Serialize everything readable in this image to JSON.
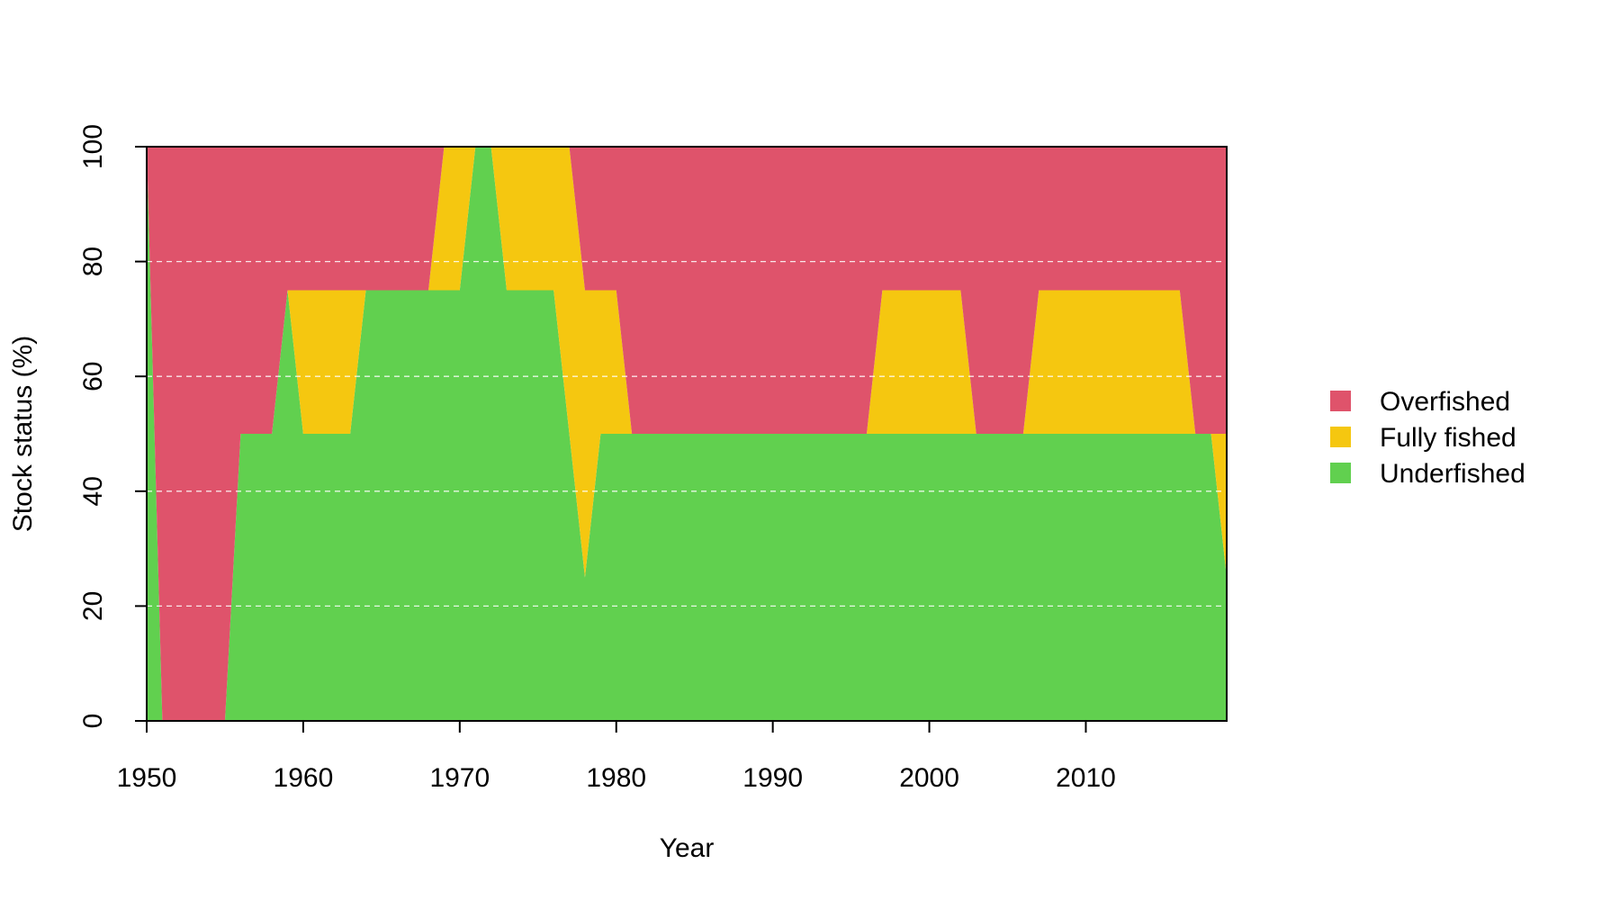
{
  "chart_data": {
    "type": "area",
    "stacked": true,
    "x": [
      1950,
      1951,
      1952,
      1953,
      1954,
      1955,
      1956,
      1957,
      1958,
      1959,
      1960,
      1961,
      1962,
      1963,
      1964,
      1965,
      1966,
      1967,
      1968,
      1969,
      1970,
      1971,
      1972,
      1973,
      1974,
      1975,
      1976,
      1977,
      1978,
      1979,
      1980,
      1981,
      1982,
      1983,
      1984,
      1985,
      1986,
      1987,
      1988,
      1989,
      1990,
      1991,
      1992,
      1993,
      1994,
      1995,
      1996,
      1997,
      1998,
      1999,
      2000,
      2001,
      2002,
      2003,
      2004,
      2005,
      2006,
      2007,
      2008,
      2009,
      2010,
      2011,
      2012,
      2013,
      2014,
      2015,
      2016,
      2017,
      2018,
      2019
    ],
    "series": [
      {
        "name": "Underfished",
        "color": "#61D04F",
        "values": [
          100,
          0,
          0,
          0,
          0,
          0,
          50,
          50,
          50,
          75,
          50,
          50,
          50,
          50,
          75,
          75,
          75,
          75,
          75,
          75,
          75,
          100,
          100,
          75,
          75,
          75,
          75,
          50,
          25,
          50,
          50,
          50,
          50,
          50,
          50,
          50,
          50,
          50,
          50,
          50,
          50,
          50,
          50,
          50,
          50,
          50,
          50,
          50,
          50,
          50,
          50,
          50,
          50,
          50,
          50,
          50,
          50,
          50,
          50,
          50,
          50,
          50,
          50,
          50,
          50,
          50,
          50,
          50,
          50,
          25
        ]
      },
      {
        "name": "Fully fished",
        "color": "#F5C710",
        "values": [
          0,
          0,
          0,
          0,
          0,
          0,
          0,
          0,
          0,
          0,
          25,
          25,
          25,
          25,
          0,
          0,
          0,
          0,
          0,
          25,
          25,
          0,
          0,
          25,
          25,
          25,
          25,
          50,
          50,
          25,
          25,
          0,
          0,
          0,
          0,
          0,
          0,
          0,
          0,
          0,
          0,
          0,
          0,
          0,
          0,
          0,
          0,
          25,
          25,
          25,
          25,
          25,
          25,
          0,
          0,
          0,
          0,
          25,
          25,
          25,
          25,
          25,
          25,
          25,
          25,
          25,
          25,
          0,
          0,
          25
        ]
      },
      {
        "name": "Overfished",
        "color": "#DF536B",
        "values": [
          0,
          100,
          100,
          100,
          100,
          100,
          50,
          50,
          50,
          25,
          25,
          25,
          25,
          25,
          25,
          25,
          25,
          25,
          25,
          0,
          0,
          0,
          0,
          0,
          0,
          0,
          0,
          0,
          25,
          25,
          25,
          50,
          50,
          50,
          50,
          50,
          50,
          50,
          50,
          50,
          50,
          50,
          50,
          50,
          50,
          50,
          50,
          25,
          25,
          25,
          25,
          25,
          25,
          50,
          50,
          50,
          50,
          25,
          25,
          25,
          25,
          25,
          25,
          25,
          25,
          25,
          25,
          50,
          50,
          50
        ]
      }
    ],
    "xlabel": "Year",
    "ylabel": "Stock status (%)",
    "xlim": [
      1950,
      2019
    ],
    "ylim": [
      0,
      100
    ],
    "x_ticks": [
      "1950",
      "1960",
      "1970",
      "1980",
      "1990",
      "2000",
      "2010"
    ],
    "y_ticks": [
      "0",
      "20",
      "40",
      "60",
      "80",
      "100"
    ],
    "grid": "horizontal dashed",
    "legend": {
      "position": "right",
      "entries": [
        {
          "label": "Overfished",
          "color": "#DF536B"
        },
        {
          "label": "Fully fished",
          "color": "#F5C710"
        },
        {
          "label": "Underfished",
          "color": "#61D04F"
        }
      ]
    }
  }
}
